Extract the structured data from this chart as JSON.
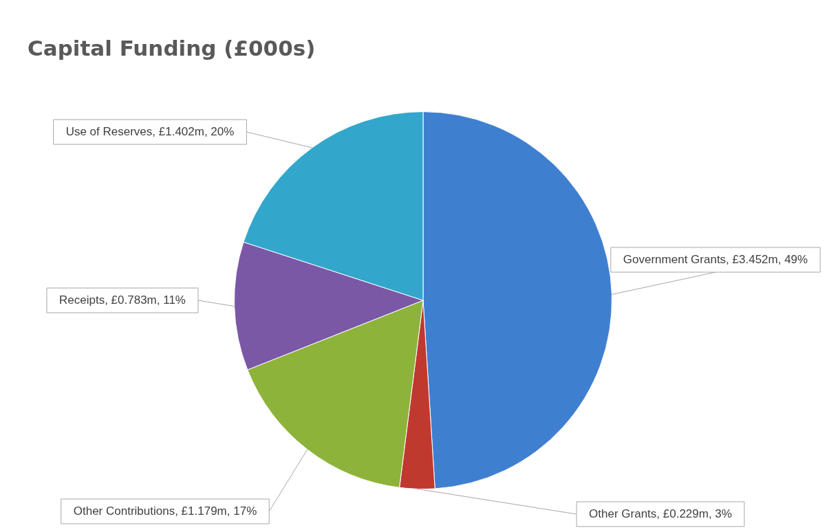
{
  "chart_data": {
    "type": "pie",
    "title": "Capital Funding (£000s)",
    "categories": [
      "Government Grants",
      "Other Grants",
      "Other Contributions",
      "Receipts",
      "Use of Reserves"
    ],
    "values": [
      49,
      3,
      17,
      11,
      20
    ],
    "value_labels": [
      "£3.452m, 49%",
      "£0.229m, 3%",
      "£1.179m, 17%",
      "£0.783m, 11%",
      "£1.402m, 20%"
    ],
    "colors": [
      "#3f7fd0",
      "#c0392f",
      "#8db33b",
      "#7b58a6",
      "#33a6cc"
    ],
    "legend": false
  }
}
